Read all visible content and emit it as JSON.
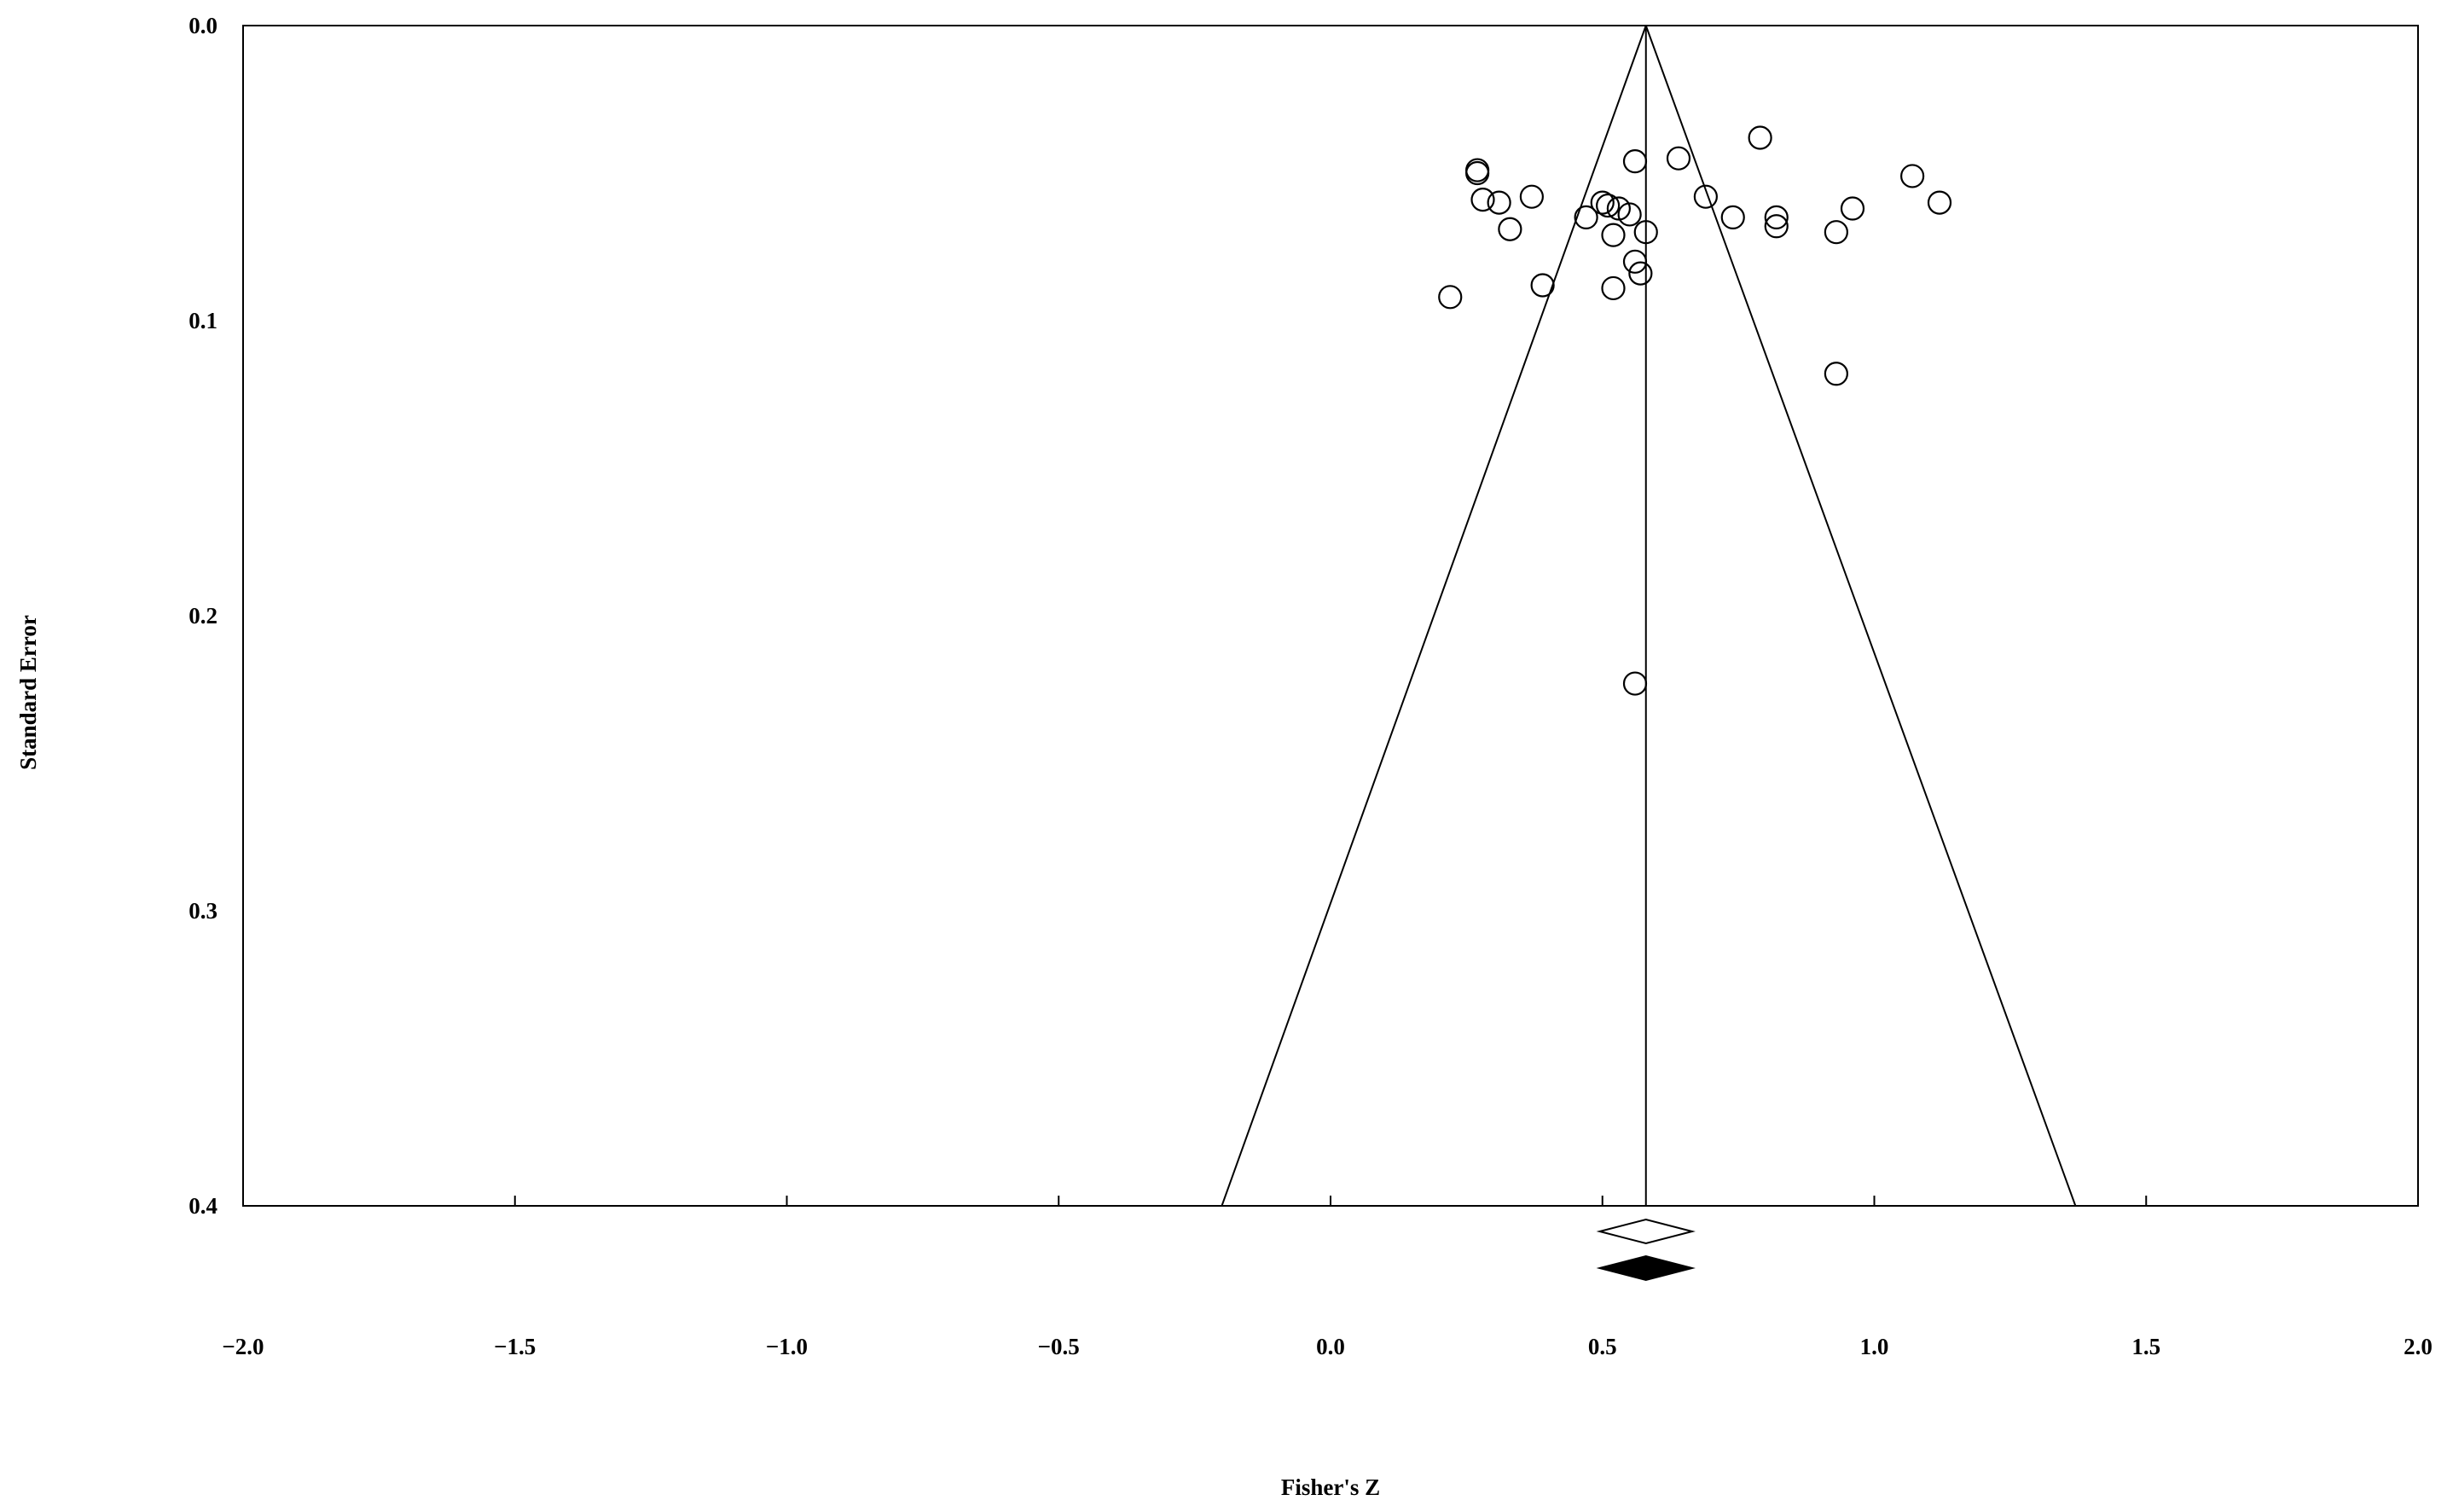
{
  "chart_data": {
    "type": "scatter",
    "subtype": "funnel-plot",
    "xlabel": "Fisher's Z",
    "ylabel": "Standard Error",
    "xlim": [
      -2.0,
      2.0
    ],
    "ylim": [
      0.0,
      0.4
    ],
    "y_reversed": true,
    "x_ticks": [
      "−2.0",
      "−1.5",
      "−1.0",
      "−0.5",
      "0.0",
      "0.5",
      "1.0",
      "1.5",
      "2.0"
    ],
    "y_ticks": [
      "0.0",
      "0.1",
      "0.2",
      "0.3",
      "0.4"
    ],
    "grid": false,
    "combined_estimate": 0.58,
    "funnel_bottom": [
      -0.2,
      1.37
    ],
    "points": [
      {
        "x": 0.27,
        "y": 0.049
      },
      {
        "x": 0.27,
        "y": 0.05
      },
      {
        "x": 0.28,
        "y": 0.059
      },
      {
        "x": 0.31,
        "y": 0.06
      },
      {
        "x": 0.37,
        "y": 0.058
      },
      {
        "x": 0.33,
        "y": 0.069
      },
      {
        "x": 0.22,
        "y": 0.092
      },
      {
        "x": 0.39,
        "y": 0.088
      },
      {
        "x": 0.47,
        "y": 0.065
      },
      {
        "x": 0.5,
        "y": 0.06
      },
      {
        "x": 0.51,
        "y": 0.061
      },
      {
        "x": 0.53,
        "y": 0.062
      },
      {
        "x": 0.55,
        "y": 0.064
      },
      {
        "x": 0.52,
        "y": 0.071
      },
      {
        "x": 0.58,
        "y": 0.07
      },
      {
        "x": 0.56,
        "y": 0.046
      },
      {
        "x": 0.64,
        "y": 0.045
      },
      {
        "x": 0.56,
        "y": 0.08
      },
      {
        "x": 0.57,
        "y": 0.084
      },
      {
        "x": 0.52,
        "y": 0.089
      },
      {
        "x": 0.69,
        "y": 0.058
      },
      {
        "x": 0.74,
        "y": 0.065
      },
      {
        "x": 0.79,
        "y": 0.038
      },
      {
        "x": 0.82,
        "y": 0.065
      },
      {
        "x": 0.82,
        "y": 0.068
      },
      {
        "x": 0.93,
        "y": 0.07
      },
      {
        "x": 0.96,
        "y": 0.062
      },
      {
        "x": 1.07,
        "y": 0.051
      },
      {
        "x": 1.12,
        "y": 0.06
      },
      {
        "x": 0.93,
        "y": 0.118
      },
      {
        "x": 0.56,
        "y": 0.223
      }
    ],
    "summary_diamonds": [
      {
        "center": 0.58,
        "half_width": 0.085,
        "fill": "#ffffff"
      },
      {
        "center": 0.58,
        "half_width": 0.085,
        "fill": "#000000"
      }
    ]
  }
}
